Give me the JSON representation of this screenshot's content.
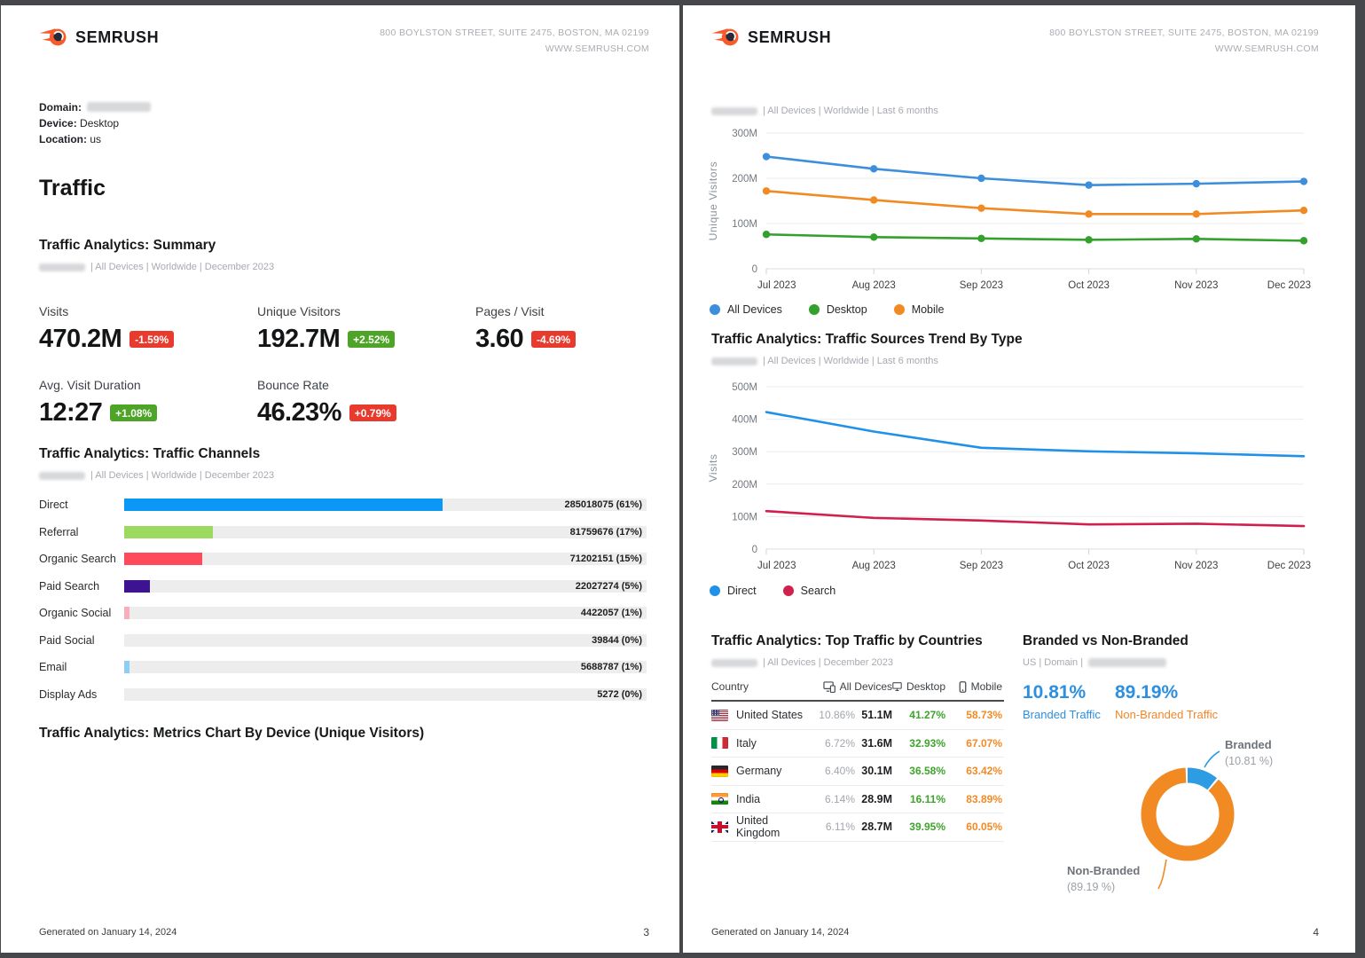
{
  "header": {
    "brand": "SEMRUSH",
    "address_line1": "800 BOYLSTON STREET, SUITE 2475, BOSTON, MA 02199",
    "address_line2": "WWW.SEMRUSH.COM"
  },
  "footer": {
    "generated": "Generated on January 14, 2024",
    "page_left": "3",
    "page_right": "4"
  },
  "left_page": {
    "meta": {
      "domain_label": "Domain:",
      "device_label": "Device:",
      "device_value": "Desktop",
      "location_label": "Location:",
      "location_value": "us"
    },
    "title": "Traffic",
    "summary": {
      "heading": "Traffic Analytics: Summary",
      "filters": "| All Devices | Worldwide | December 2023",
      "metrics": [
        {
          "label": "Visits",
          "value": "470.2M",
          "change": "-1.59%",
          "trend": "down"
        },
        {
          "label": "Unique Visitors",
          "value": "192.7M",
          "change": "+2.52%",
          "trend": "up"
        },
        {
          "label": "Pages / Visit",
          "value": "3.60",
          "change": "-4.69%",
          "trend": "down"
        },
        {
          "label": "Avg. Visit Duration",
          "value": "12:27",
          "change": "+1.08%",
          "trend": "up"
        },
        {
          "label": "Bounce Rate",
          "value": "46.23%",
          "change": "+0.79%",
          "trend": "down"
        }
      ]
    },
    "channels": {
      "heading": "Traffic Analytics: Traffic Channels",
      "filters": "| All Devices | Worldwide | December 2023"
    },
    "device_chart_heading": "Traffic Analytics: Metrics Chart By Device (Unique Visitors)"
  },
  "right_page": {
    "top_filters": "| All Devices | Worldwide | Last 6 months",
    "sources_heading": "Traffic Analytics: Traffic Sources Trend By Type",
    "sources_filters": "| All Devices | Worldwide | Last 6 months",
    "countries": {
      "heading": "Traffic Analytics: Top Traffic by Countries",
      "filters": "| All Devices | December 2023",
      "columns": {
        "country": "Country",
        "all_devices": "All Devices",
        "desktop": "Desktop",
        "mobile": "Mobile"
      },
      "rows": [
        {
          "country": "United States",
          "flag": "us",
          "share": "10.86%",
          "visits": "51.1M",
          "desktop": "41.27%",
          "mobile": "58.73%"
        },
        {
          "country": "Italy",
          "flag": "it",
          "share": "6.72%",
          "visits": "31.6M",
          "desktop": "32.93%",
          "mobile": "67.07%"
        },
        {
          "country": "Germany",
          "flag": "de",
          "share": "6.40%",
          "visits": "30.1M",
          "desktop": "36.58%",
          "mobile": "63.42%"
        },
        {
          "country": "India",
          "flag": "in",
          "share": "6.14%",
          "visits": "28.9M",
          "desktop": "16.11%",
          "mobile": "83.89%"
        },
        {
          "country": "United Kingdom",
          "flag": "gb",
          "share": "6.11%",
          "visits": "28.7M",
          "desktop": "39.95%",
          "mobile": "60.05%"
        }
      ]
    },
    "branded": {
      "heading": "Branded vs Non-Branded",
      "filters": "US | Domain |",
      "branded_pct": "10.81%",
      "branded_label": "Branded Traffic",
      "non_branded_pct": "89.19%",
      "non_branded_label": "Non-Branded Traffic",
      "callout_branded_title": "Branded",
      "callout_branded_value": "(10.81 %)",
      "callout_non_branded_title": "Non-Branded",
      "callout_non_branded_value": "(89.19 %)"
    }
  },
  "icons": {
    "brand": "semrush-flame-icon",
    "all_devices": "devices-icon",
    "desktop": "desktop-monitor-icon",
    "mobile": "mobile-phone-icon"
  },
  "colors": {
    "badge_red": "#e93a2e",
    "badge_green": "#4da427",
    "table_green": "#3fa32c",
    "table_orange": "#f28a24",
    "branded_blue": "#2e9ce3",
    "non_branded_orange": "#f28a24"
  },
  "chart_data": [
    {
      "id": "device-visitors",
      "type": "line",
      "title": "Traffic Analytics: Metrics Chart By Device (Unique Visitors)",
      "xlabel": "",
      "ylabel": "Unique Visitors",
      "x": [
        "Jul 2023",
        "Aug 2023",
        "Sep 2023",
        "Oct 2023",
        "Nov 2023",
        "Dec 2023"
      ],
      "units": "M",
      "ylim": [
        0,
        300
      ],
      "yticks": [
        0,
        100,
        200,
        300
      ],
      "ytick_labels": [
        "0",
        "100M",
        "200M",
        "300M"
      ],
      "grid": true,
      "markers": true,
      "legend_position": "bottom",
      "series": [
        {
          "name": "All Devices",
          "color": "#3d8edb",
          "values": [
            248,
            221,
            200,
            185,
            188,
            193
          ]
        },
        {
          "name": "Desktop",
          "color": "#33a12b",
          "values": [
            76,
            70,
            67,
            64,
            66,
            62
          ]
        },
        {
          "name": "Mobile",
          "color": "#f28a24",
          "values": [
            172,
            152,
            134,
            121,
            121,
            129
          ]
        }
      ]
    },
    {
      "id": "sources-trend",
      "type": "line",
      "title": "Traffic Analytics: Traffic Sources Trend By Type",
      "xlabel": "",
      "ylabel": "Visits",
      "x": [
        "Jul 2023",
        "Aug 2023",
        "Sep 2023",
        "Oct 2023",
        "Nov 2023",
        "Dec 2023"
      ],
      "units": "M",
      "ylim": [
        0,
        500
      ],
      "yticks": [
        0,
        100,
        200,
        300,
        400,
        500
      ],
      "ytick_labels": [
        "0",
        "100M",
        "200M",
        "300M",
        "400M",
        "500M"
      ],
      "grid": true,
      "markers": false,
      "legend_position": "bottom",
      "series": [
        {
          "name": "Direct",
          "color": "#2191e8",
          "values": [
            422,
            362,
            312,
            301,
            295,
            286
          ]
        },
        {
          "name": "Search",
          "color": "#d0214e",
          "values": [
            117,
            96,
            88,
            76,
            78,
            71
          ]
        }
      ]
    },
    {
      "id": "traffic-channels",
      "type": "bar",
      "orientation": "horizontal",
      "title": "Traffic Analytics: Traffic Channels",
      "categories": [
        "Direct",
        "Referral",
        "Organic Search",
        "Paid Search",
        "Organic Social",
        "Paid Social",
        "Email",
        "Display Ads"
      ],
      "values": [
        285018075,
        81759676,
        71202151,
        22027274,
        4422057,
        39844,
        5688787,
        5272
      ],
      "percents": [
        61,
        17,
        15,
        5,
        1,
        0,
        1,
        0
      ],
      "labels": [
        "285018075 (61%)",
        "81759676 (17%)",
        "71202151 (15%)",
        "22027274 (5%)",
        "4422057 (1%)",
        "39844 (0%)",
        "5688787 (1%)",
        "5272 (0%)"
      ],
      "colors": [
        "#0a97f5",
        "#9bd95f",
        "#fe4a59",
        "#3e1391",
        "#f9aebb",
        null,
        "#8ecef5",
        null
      ]
    },
    {
      "id": "branded-donut",
      "type": "pie",
      "title": "Branded vs Non-Branded",
      "slices": [
        {
          "name": "Branded",
          "value": 10.81,
          "color": "#2e9ce3"
        },
        {
          "name": "Non-Branded",
          "value": 89.19,
          "color": "#f28a24"
        }
      ]
    }
  ]
}
